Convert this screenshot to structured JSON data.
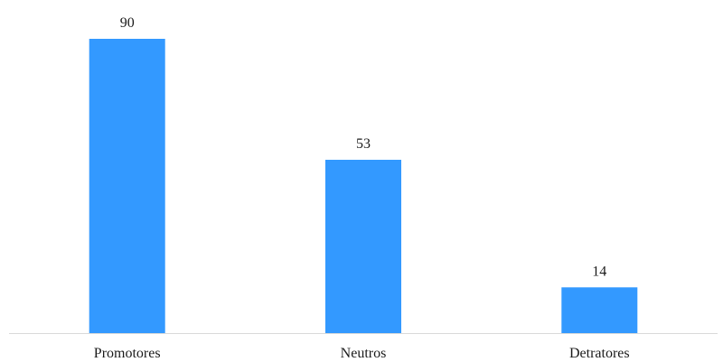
{
  "chart_data": {
    "type": "bar",
    "categories": [
      "Promotores",
      "Neutros",
      "Detratores"
    ],
    "values": [
      90,
      53,
      14
    ],
    "data_labels": [
      "90",
      "53",
      "14"
    ],
    "title": "",
    "xlabel": "",
    "ylabel": "",
    "ylim": [
      0,
      90
    ],
    "grid": false,
    "legend": "none",
    "colors": {
      "bar": "#3399ff",
      "axis": "#d9d9d9",
      "text": "#1a1a1a"
    }
  }
}
